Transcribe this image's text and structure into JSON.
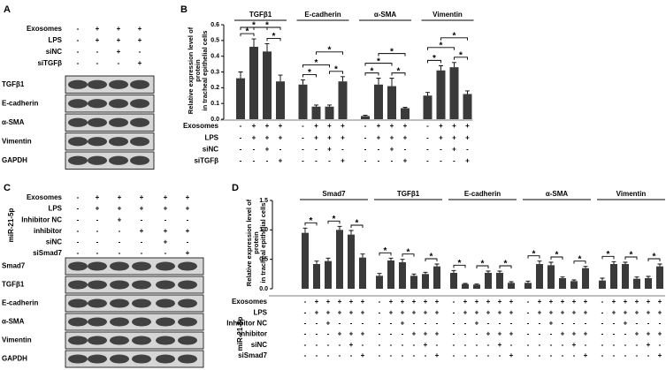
{
  "panels": {
    "a": "A",
    "b": "B",
    "c": "C",
    "d": "D"
  },
  "blot_a": {
    "conditions": [
      {
        "name": "Exosomes",
        "signs": [
          "-",
          "+",
          "+",
          "+"
        ]
      },
      {
        "name": "LPS",
        "signs": [
          "-",
          "+",
          "+",
          "+"
        ]
      },
      {
        "name": "siNC",
        "signs": [
          "-",
          "-",
          "+",
          "-"
        ]
      },
      {
        "name": "siTGFβ",
        "signs": [
          "-",
          "-",
          "-",
          "+"
        ]
      }
    ],
    "proteins": [
      "TGFβ1",
      "E-cadherin",
      "α-SMA",
      "Vimentin",
      "GAPDH"
    ]
  },
  "blot_c": {
    "group_label": "miR-21-5p",
    "conditions": [
      {
        "name": "Exosomes",
        "signs": [
          "-",
          "+",
          "+",
          "+",
          "+",
          "+"
        ]
      },
      {
        "name": "LPS",
        "signs": [
          "-",
          "+",
          "+",
          "+",
          "+",
          "+"
        ]
      },
      {
        "name": "Inhibitor NC",
        "signs": [
          "-",
          "-",
          "+",
          "-",
          "-",
          "-"
        ]
      },
      {
        "name": "inhibitor",
        "signs": [
          "-",
          "-",
          "-",
          "+",
          "+",
          "+"
        ]
      },
      {
        "name": "siNC",
        "signs": [
          "-",
          "-",
          "-",
          "-",
          "+",
          "-"
        ]
      },
      {
        "name": "siSmad7",
        "signs": [
          "-",
          "-",
          "-",
          "-",
          "-",
          "+"
        ]
      }
    ],
    "proteins": [
      "Smad7",
      "TGFβ1",
      "E-cadherin",
      "α-SMA",
      "Vimentin",
      "GAPDH"
    ]
  },
  "chart_data": [
    {
      "type": "bar",
      "y_label": [
        "Relative expression level of",
        "protein",
        "in tracheal epithelial cells"
      ],
      "color": "#3a3a3a",
      "ylim": [
        0,
        0.6
      ],
      "yticks": [
        {
          "value": 0,
          "label": "0.0"
        },
        0.1,
        0.2,
        0.3,
        0.4,
        0.5,
        0.6
      ],
      "groups": [
        {
          "name": "TGFβ1",
          "values": [
            0.26,
            0.46,
            0.43,
            0.24
          ],
          "errors": [
            0.04,
            0.05,
            0.05,
            0.04
          ],
          "significance": [
            {
              "pair": [
                0,
                1
              ],
              "label": "*"
            },
            {
              "pair": [
                2,
                3
              ],
              "label": "*"
            },
            {
              "pair": [
                0,
                2
              ],
              "label": "*"
            },
            {
              "pair": [
                1,
                3
              ],
              "label": "*"
            }
          ]
        },
        {
          "name": "E-cadherin",
          "values": [
            0.22,
            0.08,
            0.08,
            0.24
          ],
          "errors": [
            0.03,
            0.01,
            0.01,
            0.03
          ],
          "significance": [
            {
              "pair": [
                0,
                1
              ],
              "label": "*"
            },
            {
              "pair": [
                2,
                3
              ],
              "label": "*"
            },
            {
              "pair": [
                0,
                2
              ],
              "label": "*"
            },
            {
              "pair": [
                1,
                3
              ],
              "label": "*"
            }
          ]
        },
        {
          "name": "α-SMA",
          "values": [
            0.02,
            0.22,
            0.21,
            0.07
          ],
          "errors": [
            0.005,
            0.04,
            0.05,
            0.005
          ],
          "significance": [
            {
              "pair": [
                0,
                1
              ],
              "label": "*"
            },
            {
              "pair": [
                2,
                3
              ],
              "label": "*"
            },
            {
              "pair": [
                0,
                2
              ],
              "label": "*"
            },
            {
              "pair": [
                1,
                3
              ],
              "label": "*"
            }
          ]
        },
        {
          "name": "Vimentin",
          "values": [
            0.15,
            0.31,
            0.33,
            0.16
          ],
          "errors": [
            0.02,
            0.03,
            0.03,
            0.02
          ],
          "significance": [
            {
              "pair": [
                0,
                1
              ],
              "label": "*"
            },
            {
              "pair": [
                2,
                3
              ],
              "label": "*"
            },
            {
              "pair": [
                0,
                2
              ],
              "label": "*"
            },
            {
              "pair": [
                1,
                3
              ],
              "label": "*"
            }
          ]
        }
      ],
      "conditions": [
        {
          "name": "Exosomes",
          "signs": [
            "-",
            "+",
            "+",
            "+"
          ]
        },
        {
          "name": "LPS",
          "signs": [
            "-",
            "+",
            "+",
            "+"
          ]
        },
        {
          "name": "siNC",
          "signs": [
            "-",
            "-",
            "+",
            "-"
          ]
        },
        {
          "name": "siTGFβ",
          "signs": [
            "-",
            "-",
            "-",
            "+"
          ]
        }
      ]
    },
    {
      "type": "bar",
      "y_label": [
        "Relative expression level of",
        "protein",
        "in tracheal epithelial cells"
      ],
      "color": "#3a3a3a",
      "ylim": [
        0,
        1.5
      ],
      "yticks": [
        {
          "value": 0,
          "label": "0.0"
        },
        0.5,
        {
          "value": 1,
          "label": "1.0"
        },
        1.5
      ],
      "group_label": "miR-21-5p",
      "groups": [
        {
          "name": "Smad7",
          "values": [
            0.95,
            0.42,
            0.47,
            1.0,
            0.92,
            0.53
          ],
          "errors": [
            0.08,
            0.05,
            0.05,
            0.06,
            0.07,
            0.06
          ],
          "significance": [
            {
              "pair": [
                0,
                1
              ],
              "label": "*"
            },
            {
              "pair": [
                2,
                3
              ],
              "label": "*"
            },
            {
              "pair": [
                4,
                5
              ],
              "label": "*"
            }
          ]
        },
        {
          "name": "TGFβ1",
          "values": [
            0.22,
            0.48,
            0.45,
            0.22,
            0.25,
            0.38
          ],
          "errors": [
            0.04,
            0.04,
            0.05,
            0.03,
            0.03,
            0.04
          ],
          "significance": [
            {
              "pair": [
                0,
                1
              ],
              "label": "*"
            },
            {
              "pair": [
                2,
                3
              ],
              "label": "*"
            },
            {
              "pair": [
                4,
                5
              ],
              "label": "*"
            }
          ]
        },
        {
          "name": "E-cadherin",
          "values": [
            0.27,
            0.08,
            0.07,
            0.27,
            0.27,
            0.1
          ],
          "errors": [
            0.04,
            0.01,
            0.01,
            0.03,
            0.03,
            0.02
          ],
          "significance": [
            {
              "pair": [
                0,
                1
              ],
              "label": "*"
            },
            {
              "pair": [
                2,
                3
              ],
              "label": "*"
            },
            {
              "pair": [
                4,
                5
              ],
              "label": "*"
            }
          ]
        },
        {
          "name": "α-SMA",
          "values": [
            0.1,
            0.42,
            0.4,
            0.18,
            0.13,
            0.35
          ],
          "errors": [
            0.03,
            0.05,
            0.05,
            0.02,
            0.02,
            0.03
          ],
          "significance": [
            {
              "pair": [
                0,
                1
              ],
              "label": "*"
            },
            {
              "pair": [
                2,
                3
              ],
              "label": "*"
            },
            {
              "pair": [
                4,
                5
              ],
              "label": "*"
            }
          ]
        },
        {
          "name": "Vimentin",
          "values": [
            0.14,
            0.42,
            0.42,
            0.17,
            0.18,
            0.38
          ],
          "errors": [
            0.04,
            0.04,
            0.03,
            0.03,
            0.03,
            0.04
          ],
          "significance": [
            {
              "pair": [
                0,
                1
              ],
              "label": "*"
            },
            {
              "pair": [
                2,
                3
              ],
              "label": "*"
            },
            {
              "pair": [
                4,
                5
              ],
              "label": "*"
            }
          ]
        }
      ],
      "conditions": [
        {
          "name": "Exosomes",
          "signs": [
            "-",
            "+",
            "+",
            "+",
            "+",
            "+"
          ]
        },
        {
          "name": "LPS",
          "signs": [
            "-",
            "+",
            "+",
            "+",
            "+",
            "+"
          ]
        },
        {
          "name": "Inhibitor NC",
          "signs": [
            "-",
            "-",
            "+",
            "-",
            "-",
            "-"
          ]
        },
        {
          "name": "inhibitor",
          "signs": [
            "-",
            "-",
            "-",
            "+",
            "+",
            "+"
          ]
        },
        {
          "name": "siNC",
          "signs": [
            "-",
            "-",
            "-",
            "-",
            "+",
            "-"
          ]
        },
        {
          "name": "siSmad7",
          "signs": [
            "-",
            "-",
            "-",
            "-",
            "-",
            "+"
          ]
        }
      ]
    }
  ]
}
